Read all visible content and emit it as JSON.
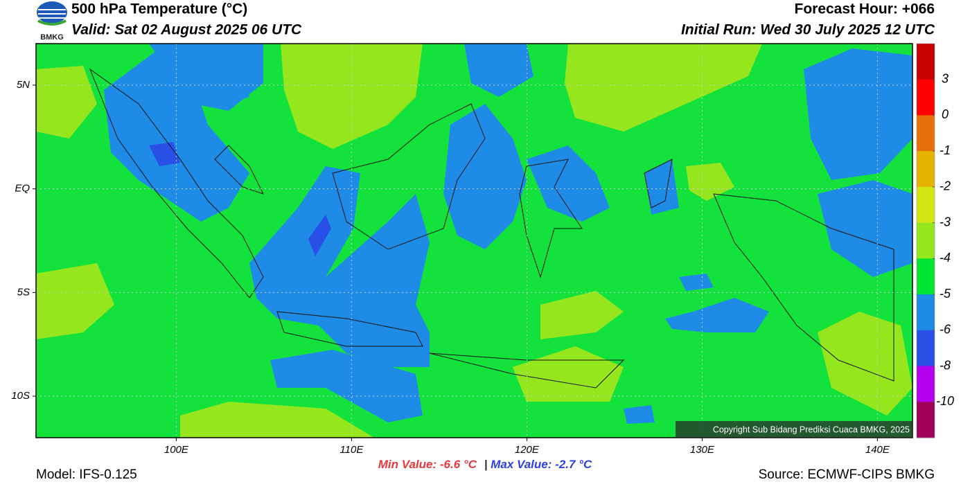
{
  "header": {
    "logo": "BMKG",
    "title": "500 hPa Temperature (°C)",
    "valid": "Valid: Sat 02 August 2025 06 UTC",
    "forecast": "Forecast Hour: +066",
    "initial": "Initial Run: Wed 30 July 2025 12 UTC"
  },
  "map": {
    "xlim": [
      92,
      142
    ],
    "ylim": [
      -12,
      7
    ],
    "xticks": [
      {
        "value": 100,
        "label": "100E"
      },
      {
        "value": 110,
        "label": "110E"
      },
      {
        "value": 120,
        "label": "120E"
      },
      {
        "value": 130,
        "label": "130E"
      },
      {
        "value": 140,
        "label": "140E"
      }
    ],
    "yticks": [
      {
        "value": 5,
        "label": "5N"
      },
      {
        "value": 0,
        "label": "EQ"
      },
      {
        "value": -5,
        "label": "5S"
      },
      {
        "value": -10,
        "label": "10S"
      }
    ],
    "grid": true,
    "copyright": "Copyright Sub Bidang Prediksi Cuaca BMKG, 2025"
  },
  "colorbar": {
    "colors": [
      "#c80000",
      "#ff0000",
      "#e8700a",
      "#e6b400",
      "#d2e614",
      "#96e61e",
      "#00e632",
      "#1e8ce6",
      "#2850e6",
      "#b400f0",
      "#a0005a"
    ],
    "ticks": [
      3,
      0,
      -1,
      -2,
      -3,
      -4,
      -5,
      -6,
      -8,
      -10
    ]
  },
  "stats": {
    "min_label": "Min Value:",
    "min_value": -6.6,
    "max_label": "Max Value:",
    "max_value": -2.7,
    "unit": "°C",
    "separator": "|"
  },
  "footer": {
    "model": "Model: IFS-0.125",
    "source": "Source: ECMWF-CIPS BMKG"
  }
}
